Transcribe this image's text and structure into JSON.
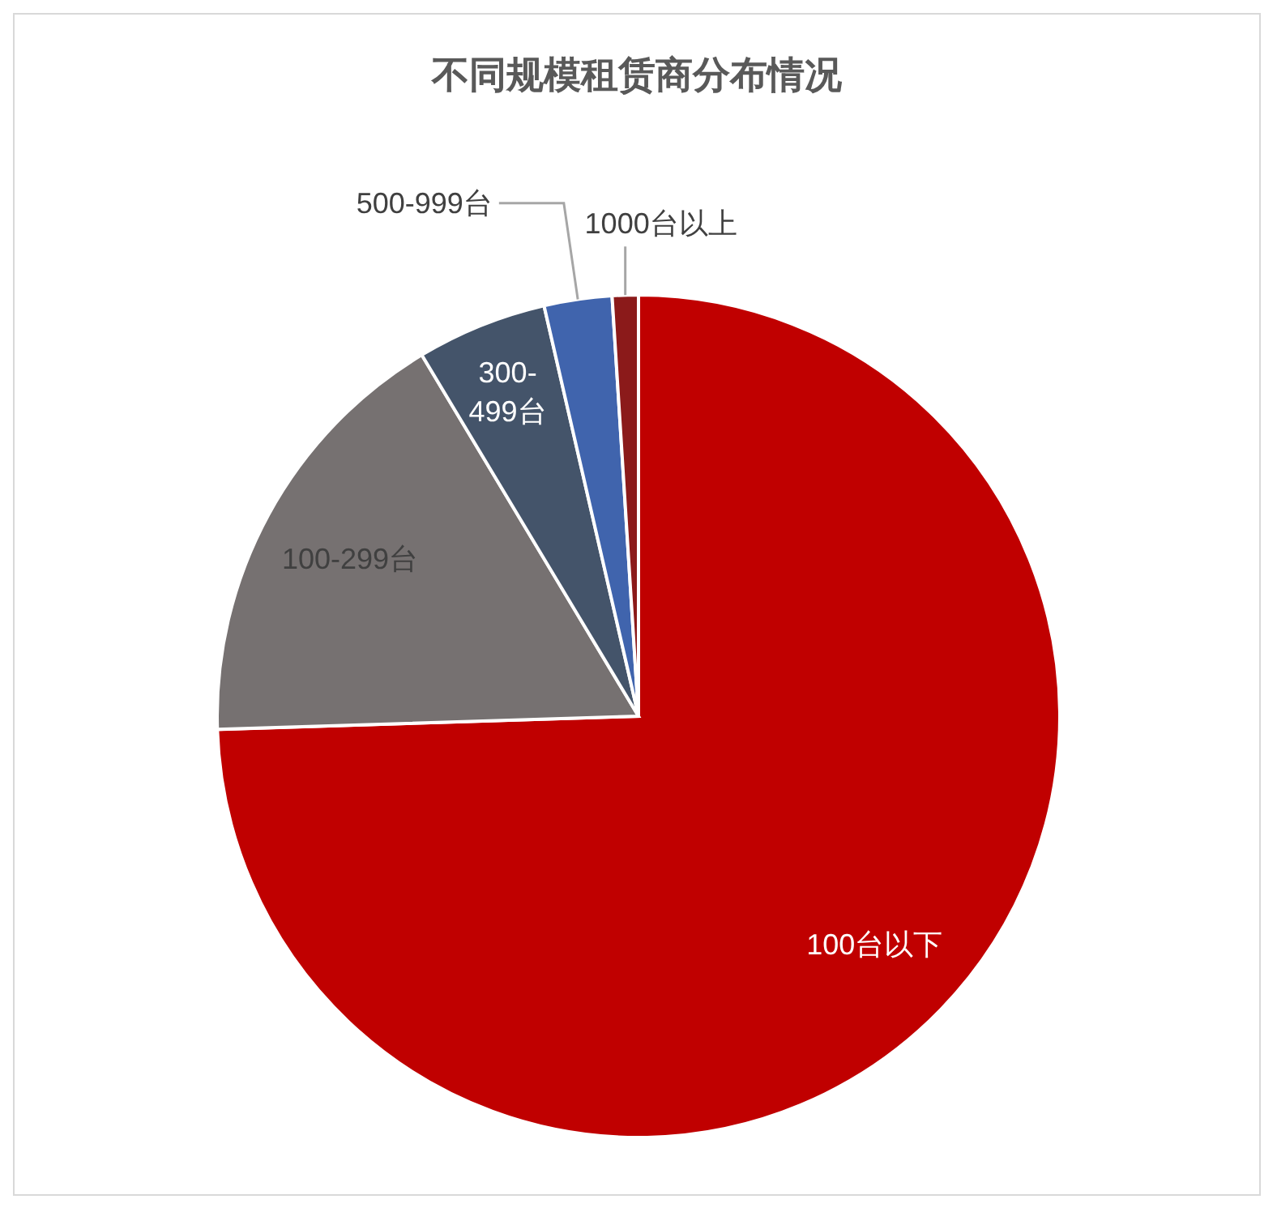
{
  "chart_data": {
    "type": "pie",
    "title": "不同规模租赁商分布情况",
    "categories": [
      "100台以下",
      "100-299台",
      "300-499台",
      "500-999台",
      "1000台以上"
    ],
    "values": [
      74.5,
      16.9,
      5.0,
      2.6,
      1.0
    ],
    "colors": [
      "#c00000",
      "#767171",
      "#44546a",
      "#4064ad",
      "#8b1a1a"
    ]
  }
}
